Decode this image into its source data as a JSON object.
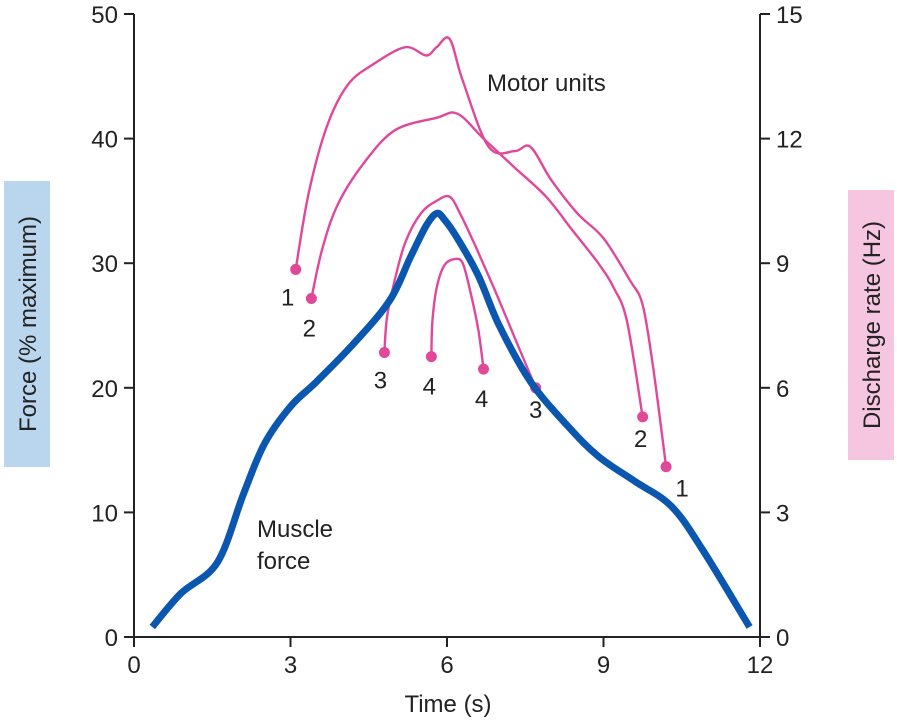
{
  "chart_data": {
    "type": "line",
    "xlabel": "Time (s)",
    "ylabel_left": "Force (% maximum)",
    "ylabel_right": "Discharge rate (Hz)",
    "xlim": [
      0,
      12
    ],
    "ylim_left": [
      0,
      50
    ],
    "ylim_right": [
      0,
      15
    ],
    "x_ticks": [
      "0",
      "3",
      "6",
      "9",
      "12"
    ],
    "y_left_ticks": [
      "0",
      "10",
      "20",
      "30",
      "40",
      "50"
    ],
    "y_right_ticks": [
      "0",
      "3",
      "6",
      "9",
      "12",
      "15"
    ],
    "grid": false,
    "colors": {
      "force": "#0b57b0",
      "units": "#e0489a",
      "axis": "#222222",
      "left_label_bg": "#bad5ee",
      "right_label_bg": "#f6c5df"
    },
    "annotations": {
      "motor_units": "Motor units",
      "muscle_force_1": "Muscle",
      "muscle_force_2": "force"
    },
    "force_series": {
      "name": "Muscle force",
      "x": [
        0.35,
        0.9,
        1.6,
        2.1,
        2.5,
        3.0,
        3.5,
        4.2,
        4.9,
        5.3,
        5.6,
        5.8,
        5.95,
        6.2,
        6.6,
        7.0,
        7.6,
        8.3,
        8.9,
        9.6,
        10.3,
        10.9,
        11.8
      ],
      "y": [
        0.8,
        3.5,
        6.0,
        11.5,
        15.5,
        18.5,
        20.5,
        23.5,
        27.0,
        30.5,
        33.0,
        34.0,
        33.5,
        32.0,
        29.0,
        25.0,
        20.5,
        17.0,
        14.5,
        12.5,
        10.5,
        7.0,
        0.8
      ]
    },
    "motor_units": [
      {
        "recruit_label": "1",
        "derecruit_label": "1",
        "x": [
          3.1,
          3.35,
          3.7,
          4.1,
          4.6,
          5.2,
          5.6,
          5.8,
          6.05,
          6.3,
          6.8,
          7.3,
          7.6,
          8.0,
          8.5,
          9.0,
          9.5,
          9.75,
          9.95,
          10.2
        ],
        "y_hz": [
          8.85,
          10.7,
          12.3,
          13.3,
          13.8,
          14.2,
          14.0,
          14.2,
          14.4,
          13.4,
          11.8,
          11.7,
          11.8,
          11.0,
          10.2,
          9.6,
          8.6,
          8.0,
          6.5,
          4.1
        ]
      },
      {
        "recruit_label": "2",
        "derecruit_label": "2",
        "x": [
          3.4,
          3.6,
          3.9,
          4.4,
          5.0,
          5.8,
          6.2,
          6.7,
          7.3,
          7.9,
          8.4,
          8.9,
          9.2,
          9.45,
          9.75
        ],
        "y_hz": [
          8.15,
          9.3,
          10.4,
          11.4,
          12.2,
          12.5,
          12.6,
          12.0,
          11.3,
          10.6,
          9.8,
          9.0,
          8.4,
          7.6,
          5.3
        ]
      },
      {
        "recruit_label": "3",
        "derecruit_label": "3",
        "x": [
          4.8,
          4.85,
          5.0,
          5.2,
          5.5,
          5.8,
          6.05,
          6.25,
          6.55,
          6.9,
          7.3,
          7.7
        ],
        "y_hz": [
          6.85,
          7.7,
          8.6,
          9.5,
          10.2,
          10.5,
          10.6,
          10.2,
          9.4,
          8.4,
          7.2,
          6.0
        ]
      },
      {
        "recruit_label": "4",
        "derecruit_label": "4",
        "x": [
          5.7,
          5.72,
          5.8,
          5.95,
          6.15,
          6.3,
          6.45,
          6.6,
          6.7
        ],
        "y_hz": [
          6.75,
          7.6,
          8.4,
          8.95,
          9.1,
          9.0,
          8.3,
          7.4,
          6.45
        ]
      }
    ]
  }
}
